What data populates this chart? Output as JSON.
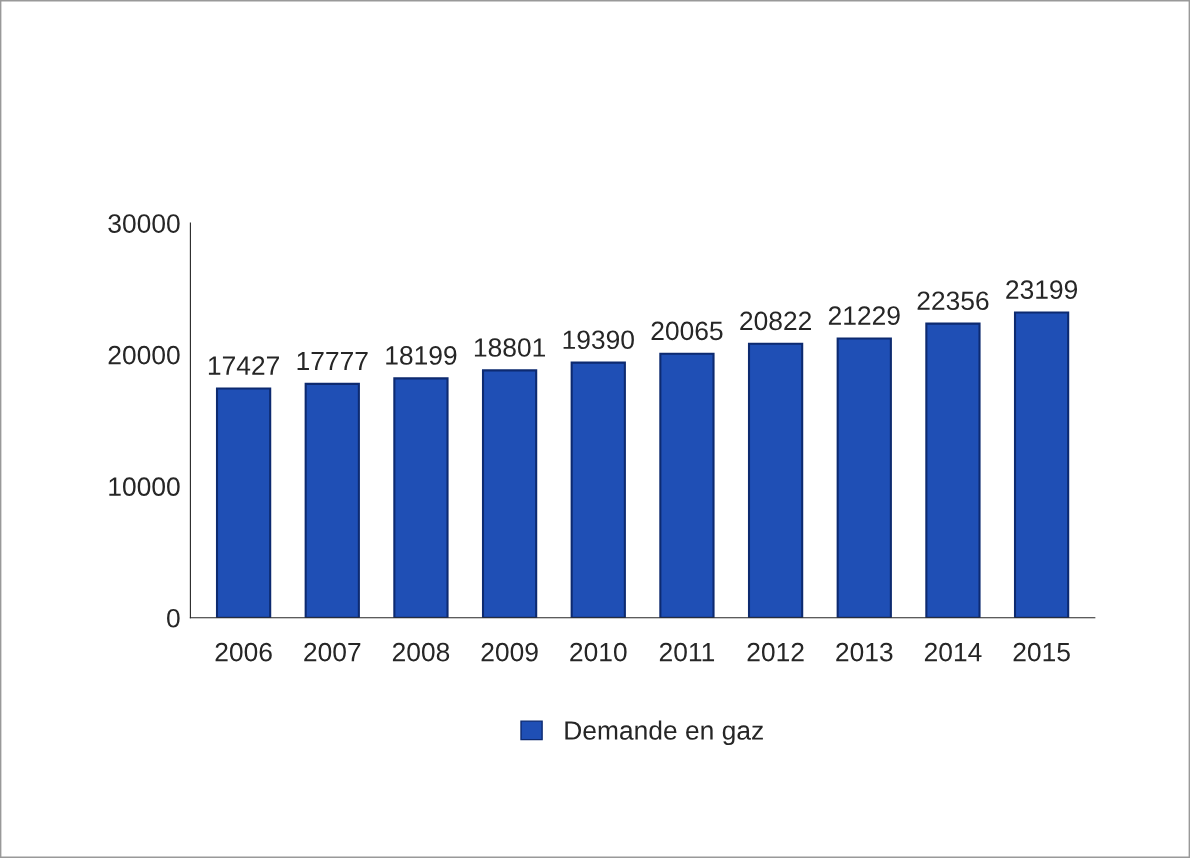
{
  "chart_data": {
    "type": "bar",
    "categories": [
      "2006",
      "2007",
      "2008",
      "2009",
      "2010",
      "2011",
      "2012",
      "2013",
      "2014",
      "2015"
    ],
    "series": [
      {
        "name": "Demande en gaz",
        "color": "#1f4fb5",
        "values": [
          17427,
          17777,
          18199,
          18801,
          19390,
          20065,
          20822,
          21229,
          22356,
          23199
        ]
      }
    ],
    "ylim": [
      0,
      30000
    ],
    "yticks": [
      0,
      10000,
      20000,
      30000
    ],
    "data_labels": true,
    "legend": "bottom",
    "grid": false
  }
}
